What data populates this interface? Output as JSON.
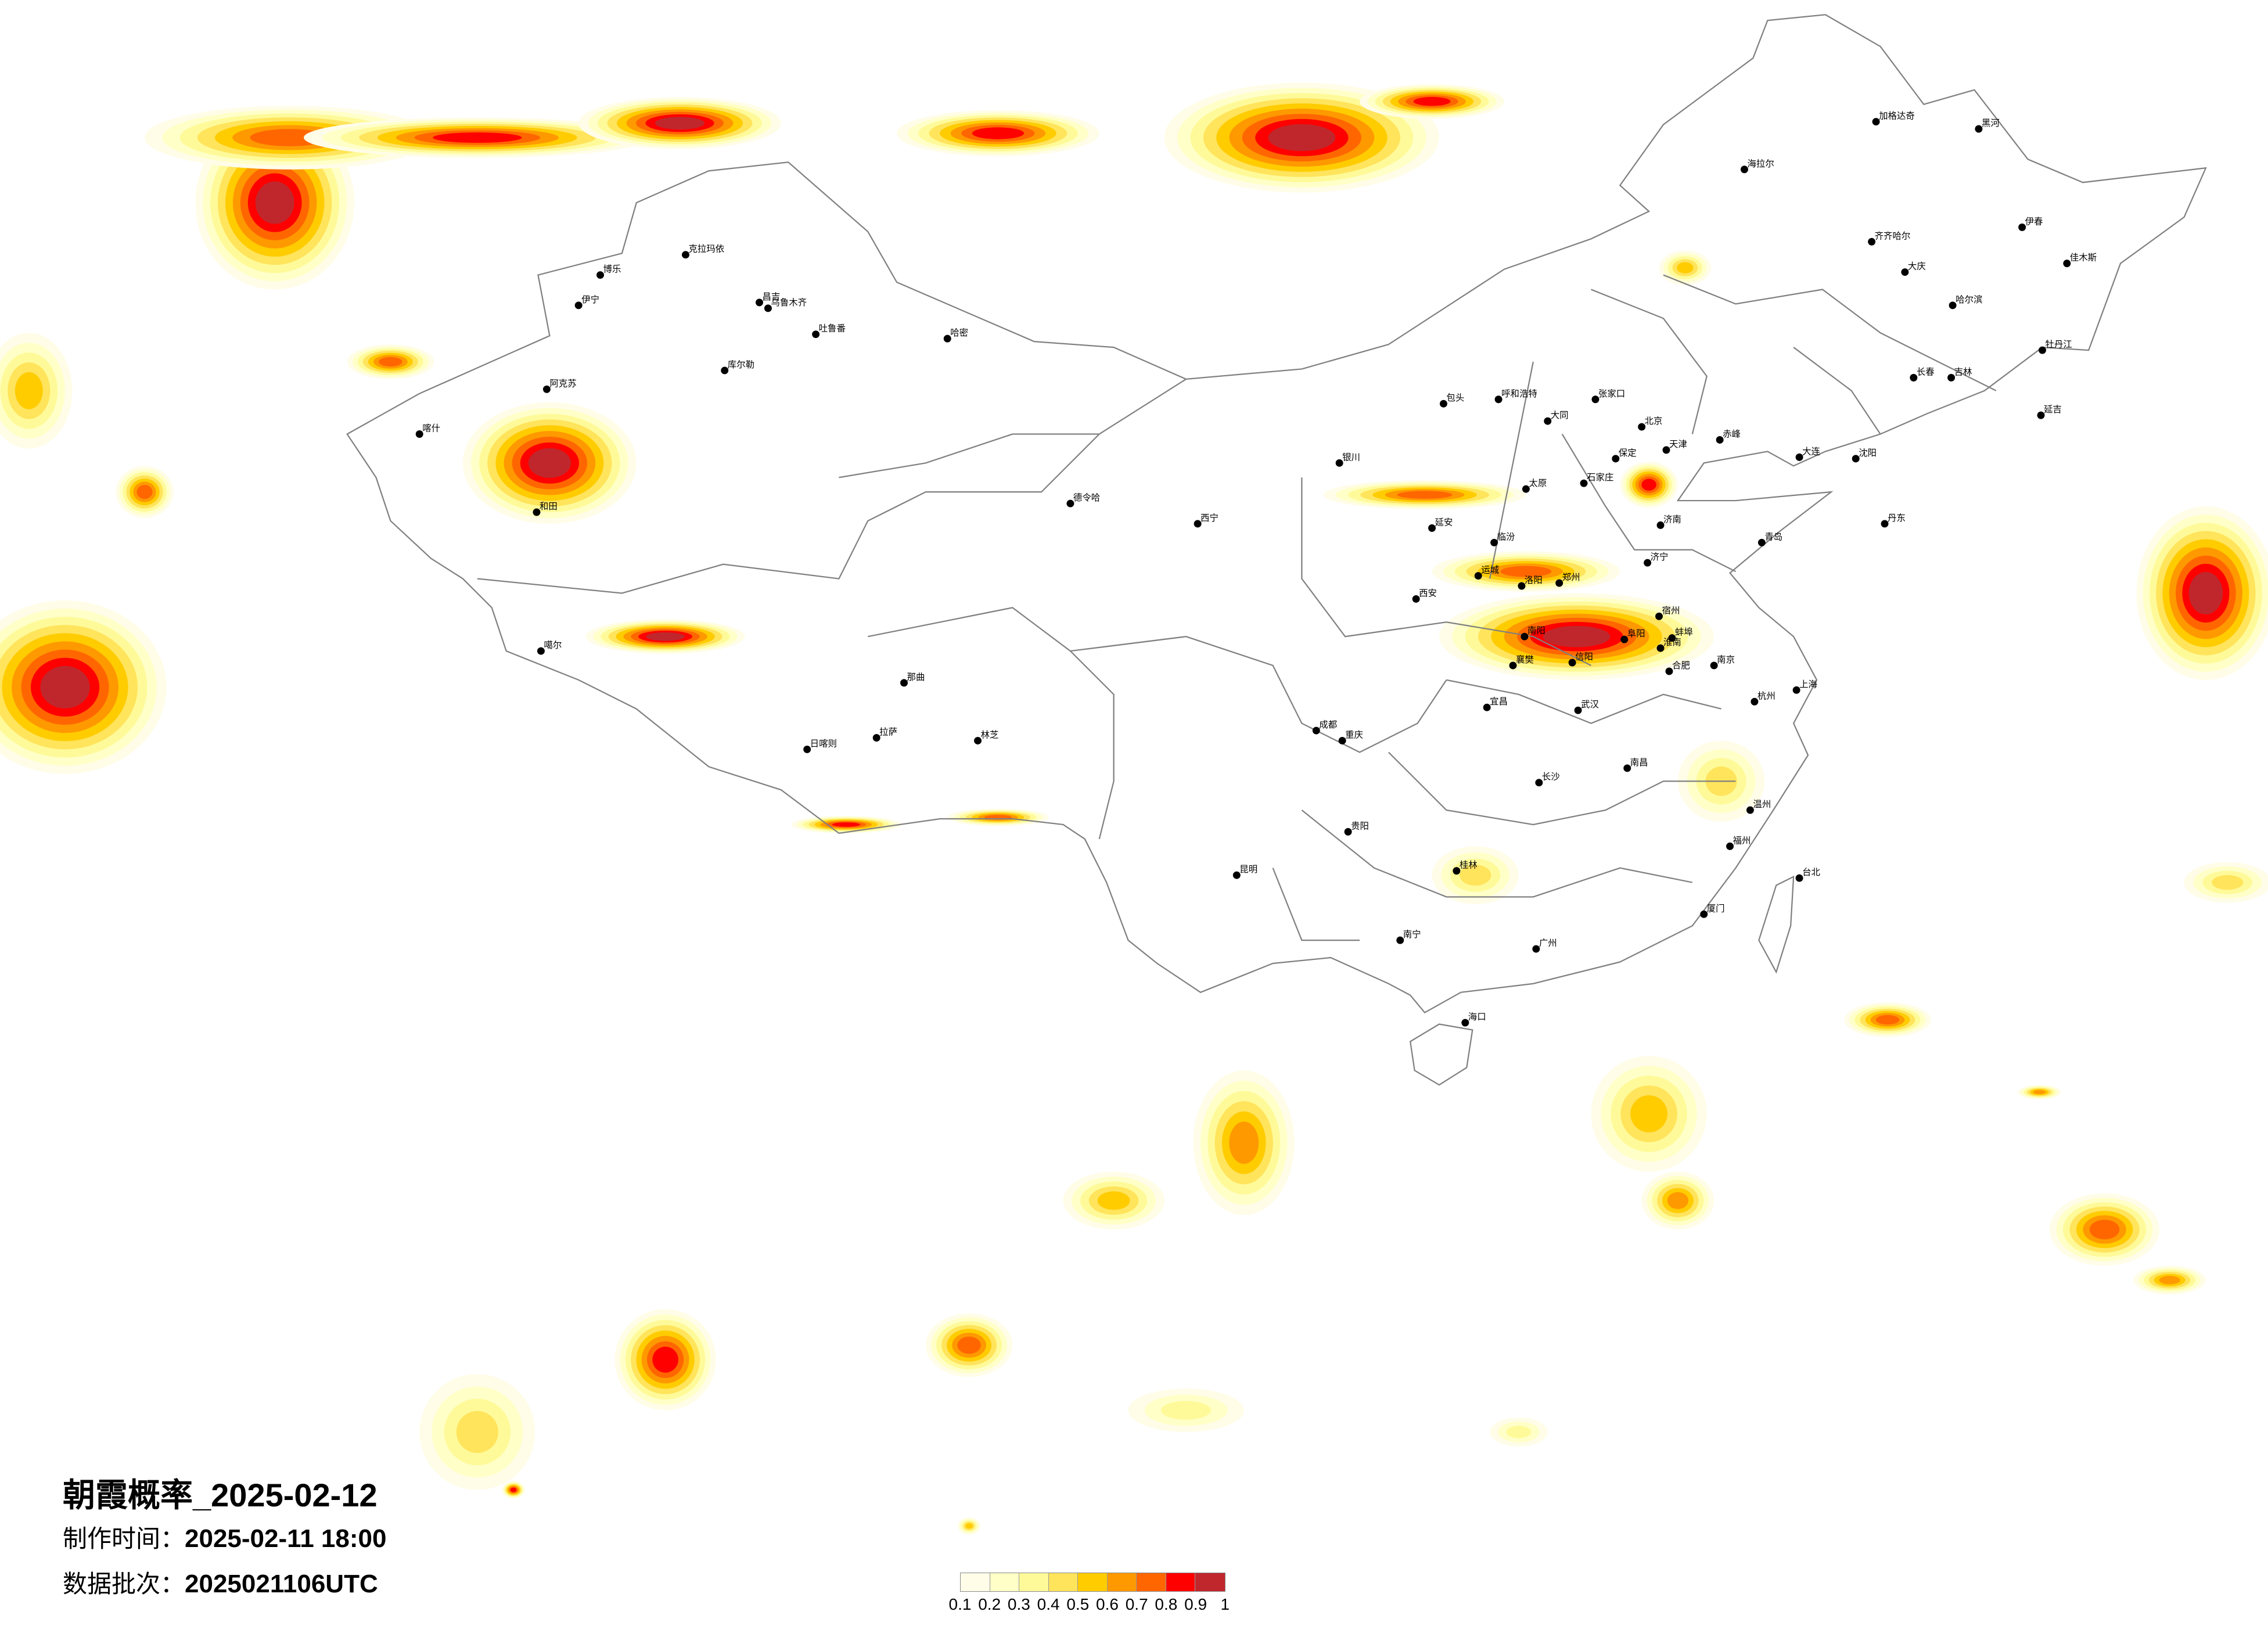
{
  "title": "朝霞概率_2025-02-12",
  "production_time": {
    "label": "制作时间：",
    "value": "2025-02-11 18:00"
  },
  "data_batch": {
    "label": "数据批次：",
    "value": "2025021106UTC"
  },
  "legend": {
    "ticks": [
      "0.1",
      "0.2",
      "0.3",
      "0.4",
      "0.5",
      "0.6",
      "0.7",
      "0.8",
      "0.9",
      "1"
    ],
    "colors": [
      "#fffde8",
      "#ffffc8",
      "#fffa99",
      "#ffe45c",
      "#ffcc00",
      "#ff9900",
      "#ff6600",
      "#ff0000",
      "#c0272d"
    ]
  },
  "map": {
    "border_color": "#808080",
    "city_dot_color": "#000000",
    "cities": [
      "北京",
      "天津",
      "石家庄",
      "太原",
      "呼和浩特",
      "包头",
      "张家口",
      "大同",
      "保定",
      "济南",
      "青岛",
      "郑州",
      "西安",
      "洛阳",
      "合肥",
      "南京",
      "上海",
      "杭州",
      "武汉",
      "长沙",
      "南昌",
      "重庆",
      "贵阳",
      "福州",
      "信阳",
      "阜阳",
      "襄樊",
      "延安",
      "大连",
      "桂林",
      "蚌埠",
      "宜昌",
      "济宁",
      "宿州",
      "淮南",
      "南阳",
      "运城",
      "临汾",
      "银川",
      "哈尔滨",
      "长春",
      "沈阳",
      "齐齐哈尔",
      "黑河",
      "海拉尔",
      "加格达奇",
      "大庆",
      "佳木斯",
      "牡丹江",
      "吉林",
      "延吉",
      "丹东",
      "伊春",
      "赤峰",
      "乌鲁木齐",
      "昌吉",
      "克拉玛依",
      "伊宁",
      "博乐",
      "吐鲁番",
      "哈密",
      "库尔勒",
      "阿克苏",
      "和田",
      "喀什",
      "拉萨",
      "日喀则",
      "那曲",
      "噶尔",
      "林芝",
      "西宁",
      "德令哈",
      "成都",
      "昆明",
      "南宁",
      "广州",
      "海口",
      "台北",
      "厦门",
      "温州"
    ]
  }
}
